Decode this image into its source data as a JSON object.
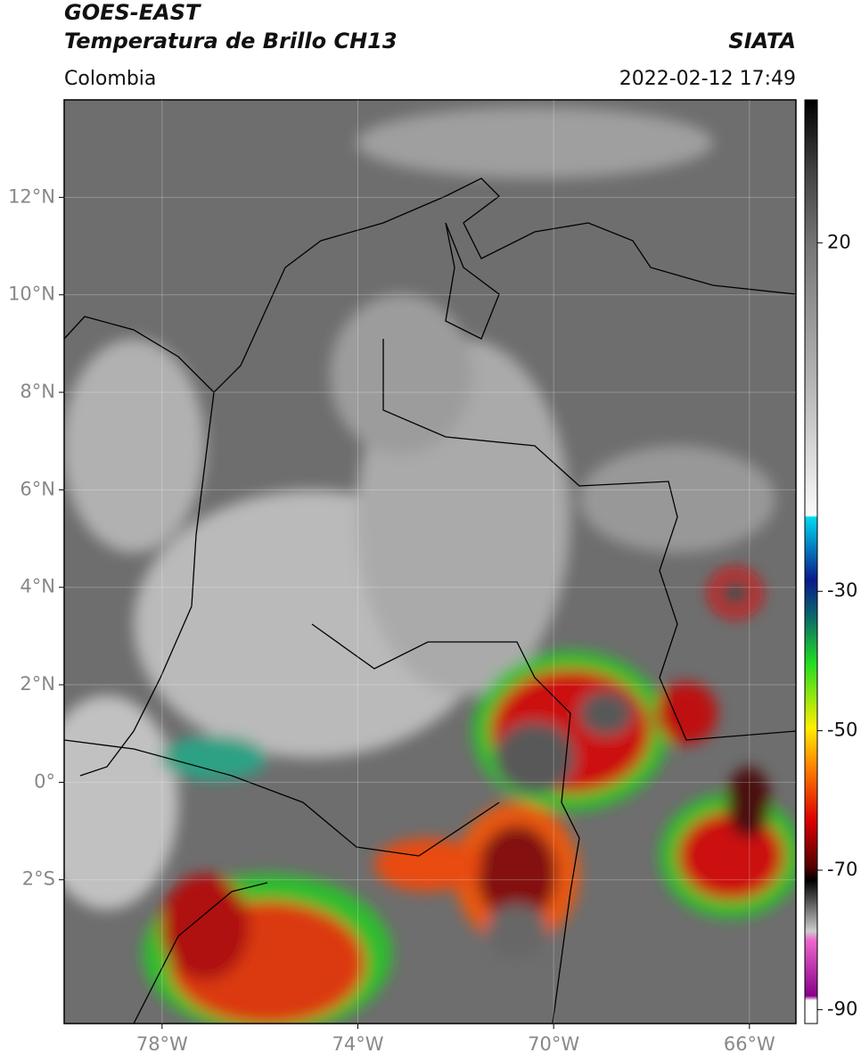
{
  "header": {
    "title": "GOES-EAST",
    "subtitle": "Temperatura de Brillo CH13",
    "region": "Colombia",
    "source": "SIATA",
    "datetime": "2022-02-12 17:49"
  },
  "map": {
    "lat_range": [
      -4.95,
      14
    ],
    "lon_range": [
      -80,
      -65.05
    ],
    "lat_ticks": [
      {
        "value": 12,
        "label": "12°N"
      },
      {
        "value": 10,
        "label": "10°N"
      },
      {
        "value": 8,
        "label": "8°N"
      },
      {
        "value": 6,
        "label": "6°N"
      },
      {
        "value": 4,
        "label": "4°N"
      },
      {
        "value": 2,
        "label": "2°N"
      },
      {
        "value": 0,
        "label": "0°"
      },
      {
        "value": -2,
        "label": "2°S"
      }
    ],
    "lon_ticks": [
      {
        "value": -78,
        "label": "78°W"
      },
      {
        "value": -74,
        "label": "74°W"
      },
      {
        "value": -70,
        "label": "70°W"
      },
      {
        "value": -66,
        "label": "66°W"
      }
    ]
  },
  "colorbar": {
    "range": [
      -92,
      40.5
    ],
    "ticks": [
      20,
      -30,
      -50,
      -70,
      -90
    ]
  }
}
